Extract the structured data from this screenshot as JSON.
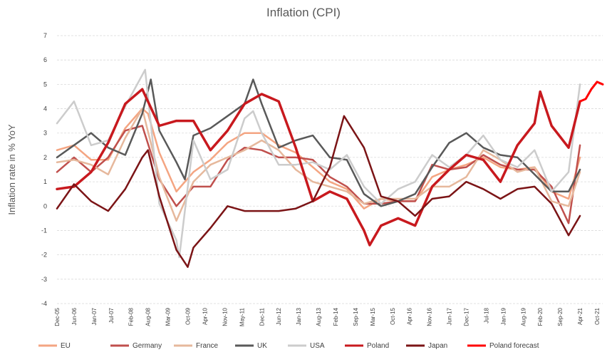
{
  "chart_data": {
    "type": "line",
    "title": "Inflation (CPI)",
    "ylabel": "Inflation rate in % YoY",
    "xlabel": "",
    "ylim": [
      -4,
      7
    ],
    "yticks": [
      -4,
      -3,
      -2,
      -1,
      0,
      1,
      2,
      3,
      4,
      5,
      6,
      7
    ],
    "x_start": "Dec-05",
    "x_end": "Dec-21",
    "x_tick_labels": [
      "Dec-05",
      "Jun-06",
      "Jan-07",
      "Jul-07",
      "Feb-08",
      "Aug-08",
      "Mar-09",
      "Oct-09",
      "Apr-10",
      "Nov-10",
      "May-11",
      "Dec-11",
      "Jun-12",
      "Jan-13",
      "Aug-13",
      "Feb-14",
      "Sep-14",
      "Mar-15",
      "Oct-15",
      "Apr-16",
      "Nov-16",
      "Jun-17",
      "Dec-17",
      "Jul-18",
      "Jan-19",
      "Aug-19",
      "Feb-20",
      "Sep-20",
      "Apr-21",
      "Oct-21"
    ],
    "grid": true,
    "legend_position": "bottom",
    "series": [
      {
        "name": "EU",
        "color": "#f4a582",
        "width": 2.5,
        "points": [
          [
            "Dec-05",
            2.3
          ],
          [
            "Jun-06",
            2.5
          ],
          [
            "Dec-06",
            1.9
          ],
          [
            "Jun-07",
            1.9
          ],
          [
            "Dec-07",
            3.2
          ],
          [
            "Jun-08",
            4.0
          ],
          [
            "Aug-08",
            3.8
          ],
          [
            "Dec-08",
            2.2
          ],
          [
            "Jun-09",
            0.6
          ],
          [
            "Dec-09",
            1.4
          ],
          [
            "Jun-10",
            1.9
          ],
          [
            "Dec-10",
            2.6
          ],
          [
            "Jun-11",
            3.0
          ],
          [
            "Dec-11",
            3.0
          ],
          [
            "Jun-12",
            2.5
          ],
          [
            "Dec-12",
            2.2
          ],
          [
            "Jun-13",
            1.6
          ],
          [
            "Dec-13",
            1.0
          ],
          [
            "Jun-14",
            0.7
          ],
          [
            "Dec-14",
            -0.1
          ],
          [
            "Jun-15",
            0.3
          ],
          [
            "Dec-15",
            0.2
          ],
          [
            "Jun-16",
            0.2
          ],
          [
            "Dec-16",
            1.2
          ],
          [
            "Jun-17",
            1.5
          ],
          [
            "Dec-17",
            1.7
          ],
          [
            "Jun-18",
            2.0
          ],
          [
            "Dec-18",
            1.6
          ],
          [
            "Jun-19",
            1.5
          ],
          [
            "Dec-19",
            1.6
          ],
          [
            "Jun-20",
            0.6
          ],
          [
            "Dec-20",
            0.3
          ],
          [
            "Apr-21",
            2.0
          ]
        ]
      },
      {
        "name": "Germany",
        "color": "#c0504d",
        "width": 2.5,
        "points": [
          [
            "Dec-05",
            1.4
          ],
          [
            "Jun-06",
            2.0
          ],
          [
            "Dec-06",
            1.4
          ],
          [
            "Jun-07",
            2.0
          ],
          [
            "Dec-07",
            3.1
          ],
          [
            "Jun-08",
            3.3
          ],
          [
            "Dec-08",
            1.1
          ],
          [
            "Jun-09",
            0.0
          ],
          [
            "Dec-09",
            0.8
          ],
          [
            "Jun-10",
            0.8
          ],
          [
            "Dec-10",
            1.9
          ],
          [
            "Jun-11",
            2.4
          ],
          [
            "Dec-11",
            2.3
          ],
          [
            "Jun-12",
            2.0
          ],
          [
            "Dec-12",
            2.0
          ],
          [
            "Jun-13",
            1.9
          ],
          [
            "Dec-13",
            1.2
          ],
          [
            "Jun-14",
            0.8
          ],
          [
            "Dec-14",
            0.1
          ],
          [
            "Jun-15",
            0.1
          ],
          [
            "Dec-15",
            0.2
          ],
          [
            "Jun-16",
            0.2
          ],
          [
            "Dec-16",
            1.7
          ],
          [
            "Jun-17",
            1.5
          ],
          [
            "Dec-17",
            1.6
          ],
          [
            "Jun-18",
            2.1
          ],
          [
            "Dec-18",
            1.7
          ],
          [
            "Jun-19",
            1.5
          ],
          [
            "Dec-19",
            1.5
          ],
          [
            "Jun-20",
            0.8
          ],
          [
            "Dec-20",
            -0.7
          ],
          [
            "Apr-21",
            2.5
          ]
        ]
      },
      {
        "name": "France",
        "color": "#e6b89c",
        "width": 2.5,
        "points": [
          [
            "Dec-05",
            1.8
          ],
          [
            "Jun-06",
            1.9
          ],
          [
            "Dec-06",
            1.7
          ],
          [
            "Jun-07",
            1.3
          ],
          [
            "Dec-07",
            2.8
          ],
          [
            "Jun-08",
            4.0
          ],
          [
            "Dec-08",
            1.2
          ],
          [
            "Jun-09",
            -0.6
          ],
          [
            "Dec-09",
            1.0
          ],
          [
            "Jun-10",
            1.7
          ],
          [
            "Dec-10",
            2.0
          ],
          [
            "Jun-11",
            2.3
          ],
          [
            "Dec-11",
            2.7
          ],
          [
            "Jun-12",
            2.3
          ],
          [
            "Dec-12",
            1.5
          ],
          [
            "Jun-13",
            1.0
          ],
          [
            "Dec-13",
            0.8
          ],
          [
            "Jun-14",
            0.6
          ],
          [
            "Dec-14",
            0.1
          ],
          [
            "Jun-15",
            0.3
          ],
          [
            "Dec-15",
            0.3
          ],
          [
            "Jun-16",
            0.3
          ],
          [
            "Dec-16",
            0.8
          ],
          [
            "Jun-17",
            0.8
          ],
          [
            "Dec-17",
            1.2
          ],
          [
            "Jun-18",
            2.3
          ],
          [
            "Dec-18",
            1.9
          ],
          [
            "Jun-19",
            1.4
          ],
          [
            "Dec-19",
            1.6
          ],
          [
            "Jun-20",
            0.2
          ],
          [
            "Dec-20",
            0.0
          ],
          [
            "Apr-21",
            1.4
          ]
        ]
      },
      {
        "name": "UK",
        "color": "#595959",
        "width": 2.5,
        "points": [
          [
            "Dec-05",
            2.0
          ],
          [
            "Jun-06",
            2.5
          ],
          [
            "Dec-06",
            3.0
          ],
          [
            "Jun-07",
            2.4
          ],
          [
            "Dec-07",
            2.1
          ],
          [
            "Jun-08",
            3.8
          ],
          [
            "Sep-08",
            5.2
          ],
          [
            "Dec-08",
            3.1
          ],
          [
            "Jun-09",
            1.8
          ],
          [
            "Sep-09",
            1.1
          ],
          [
            "Dec-09",
            2.9
          ],
          [
            "Jun-10",
            3.2
          ],
          [
            "Dec-10",
            3.7
          ],
          [
            "Jun-11",
            4.2
          ],
          [
            "Sep-11",
            5.2
          ],
          [
            "Dec-11",
            4.2
          ],
          [
            "Jun-12",
            2.4
          ],
          [
            "Dec-12",
            2.7
          ],
          [
            "Jun-13",
            2.9
          ],
          [
            "Dec-13",
            2.0
          ],
          [
            "Jun-14",
            1.9
          ],
          [
            "Dec-14",
            0.5
          ],
          [
            "Jun-15",
            0.0
          ],
          [
            "Dec-15",
            0.2
          ],
          [
            "Jun-16",
            0.5
          ],
          [
            "Dec-16",
            1.6
          ],
          [
            "Jun-17",
            2.6
          ],
          [
            "Dec-17",
            3.0
          ],
          [
            "Jun-18",
            2.4
          ],
          [
            "Dec-18",
            2.1
          ],
          [
            "Jun-19",
            2.0
          ],
          [
            "Dec-19",
            1.3
          ],
          [
            "Jun-20",
            0.6
          ],
          [
            "Dec-20",
            0.6
          ],
          [
            "Apr-21",
            1.5
          ]
        ]
      },
      {
        "name": "USA",
        "color": "#cccccc",
        "width": 2.5,
        "points": [
          [
            "Dec-05",
            3.4
          ],
          [
            "Jun-06",
            4.3
          ],
          [
            "Dec-06",
            2.5
          ],
          [
            "Jun-07",
            2.7
          ],
          [
            "Dec-07",
            4.1
          ],
          [
            "Jul-08",
            5.6
          ],
          [
            "Dec-08",
            0.1
          ],
          [
            "Jun-09",
            -1.4
          ],
          [
            "Jul-09",
            -2.1
          ],
          [
            "Dec-09",
            2.7
          ],
          [
            "Jun-10",
            1.1
          ],
          [
            "Dec-10",
            1.5
          ],
          [
            "Jun-11",
            3.6
          ],
          [
            "Sep-11",
            3.9
          ],
          [
            "Dec-11",
            3.0
          ],
          [
            "Jun-12",
            1.7
          ],
          [
            "Dec-12",
            1.7
          ],
          [
            "Jun-13",
            1.8
          ],
          [
            "Dec-13",
            1.5
          ],
          [
            "Jun-14",
            2.1
          ],
          [
            "Dec-14",
            0.8
          ],
          [
            "Jun-15",
            0.1
          ],
          [
            "Dec-15",
            0.7
          ],
          [
            "Jun-16",
            1.0
          ],
          [
            "Dec-16",
            2.1
          ],
          [
            "Jun-17",
            1.6
          ],
          [
            "Dec-17",
            2.1
          ],
          [
            "Jun-18",
            2.9
          ],
          [
            "Dec-18",
            1.9
          ],
          [
            "Jun-19",
            1.6
          ],
          [
            "Dec-19",
            2.3
          ],
          [
            "Jun-20",
            0.6
          ],
          [
            "Dec-20",
            1.4
          ],
          [
            "Apr-21",
            5.0
          ]
        ]
      },
      {
        "name": "Poland",
        "color": "#c8191e",
        "width": 3.5,
        "points": [
          [
            "Dec-05",
            0.7
          ],
          [
            "Jun-06",
            0.8
          ],
          [
            "Dec-06",
            1.4
          ],
          [
            "Jun-07",
            2.6
          ],
          [
            "Dec-07",
            4.2
          ],
          [
            "Jun-08",
            4.8
          ],
          [
            "Dec-08",
            3.3
          ],
          [
            "Jun-09",
            3.5
          ],
          [
            "Dec-09",
            3.5
          ],
          [
            "Jun-10",
            2.3
          ],
          [
            "Dec-10",
            3.1
          ],
          [
            "Jun-11",
            4.2
          ],
          [
            "Dec-11",
            4.6
          ],
          [
            "Jun-12",
            4.3
          ],
          [
            "Dec-12",
            2.4
          ],
          [
            "Jun-13",
            0.2
          ],
          [
            "Dec-13",
            0.6
          ],
          [
            "Jun-14",
            0.3
          ],
          [
            "Dec-14",
            -1.0
          ],
          [
            "Feb-15",
            -1.6
          ],
          [
            "Jun-15",
            -0.8
          ],
          [
            "Dec-15",
            -0.5
          ],
          [
            "Jun-16",
            -0.8
          ],
          [
            "Dec-16",
            0.8
          ],
          [
            "Jun-17",
            1.5
          ],
          [
            "Dec-17",
            2.1
          ],
          [
            "Jun-18",
            1.9
          ],
          [
            "Dec-18",
            1.0
          ],
          [
            "Jun-19",
            2.5
          ],
          [
            "Dec-19",
            3.4
          ],
          [
            "Feb-20",
            4.7
          ],
          [
            "Jun-20",
            3.3
          ],
          [
            "Dec-20",
            2.4
          ],
          [
            "Apr-21",
            4.3
          ]
        ]
      },
      {
        "name": "Japan",
        "color": "#7b1416",
        "width": 2.5,
        "points": [
          [
            "Dec-05",
            -0.1
          ],
          [
            "Jun-06",
            0.9
          ],
          [
            "Dec-06",
            0.2
          ],
          [
            "Jun-07",
            -0.2
          ],
          [
            "Dec-07",
            0.7
          ],
          [
            "Jun-08",
            2.0
          ],
          [
            "Aug-08",
            2.3
          ],
          [
            "Dec-08",
            0.4
          ],
          [
            "Jun-09",
            -1.8
          ],
          [
            "Oct-09",
            -2.5
          ],
          [
            "Dec-09",
            -1.7
          ],
          [
            "Jun-10",
            -0.9
          ],
          [
            "Dec-10",
            0.0
          ],
          [
            "Jun-11",
            -0.2
          ],
          [
            "Dec-11",
            -0.2
          ],
          [
            "Jun-12",
            -0.2
          ],
          [
            "Dec-12",
            -0.1
          ],
          [
            "Jun-13",
            0.2
          ],
          [
            "Dec-13",
            1.6
          ],
          [
            "May-14",
            3.7
          ],
          [
            "Dec-14",
            2.4
          ],
          [
            "Jun-15",
            0.4
          ],
          [
            "Dec-15",
            0.2
          ],
          [
            "Jun-16",
            -0.4
          ],
          [
            "Dec-16",
            0.3
          ],
          [
            "Jun-17",
            0.4
          ],
          [
            "Dec-17",
            1.0
          ],
          [
            "Jun-18",
            0.7
          ],
          [
            "Dec-18",
            0.3
          ],
          [
            "Jun-19",
            0.7
          ],
          [
            "Dec-19",
            0.8
          ],
          [
            "Jun-20",
            0.1
          ],
          [
            "Dec-20",
            -1.2
          ],
          [
            "Apr-21",
            -0.4
          ]
        ]
      },
      {
        "name": "Poland forecast",
        "color": "#ff0000",
        "width": 3,
        "points": [
          [
            "Apr-21",
            4.3
          ],
          [
            "Jun-21",
            4.4
          ],
          [
            "Aug-21",
            4.8
          ],
          [
            "Oct-21",
            5.1
          ],
          [
            "Dec-21",
            5.0
          ]
        ]
      }
    ]
  }
}
